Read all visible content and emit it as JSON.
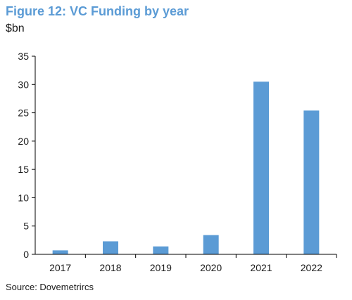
{
  "chart_data": {
    "type": "bar",
    "title": "Figure 12: VC Funding by year",
    "ylabel": "$bn",
    "source": "Source: Dovemetrircs",
    "categories": [
      "2017",
      "2018",
      "2019",
      "2020",
      "2021",
      "2022"
    ],
    "values": [
      0.7,
      2.3,
      1.4,
      3.4,
      30.5,
      25.4
    ],
    "ylim": [
      0,
      35
    ],
    "yticks": [
      0,
      5,
      10,
      15,
      20,
      25,
      30,
      35
    ],
    "grid": false,
    "bar_color": "#5b9bd5"
  }
}
